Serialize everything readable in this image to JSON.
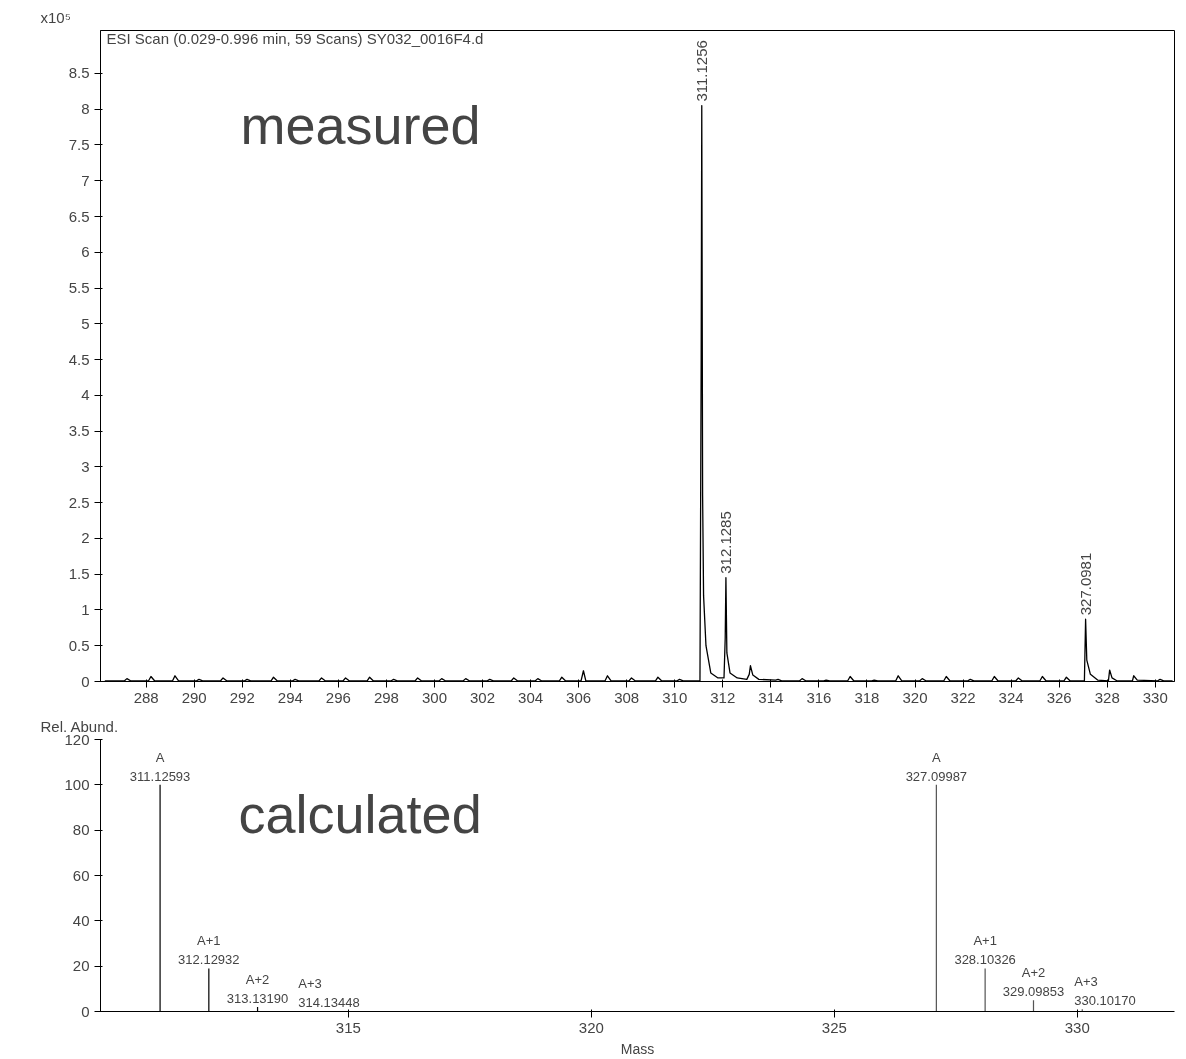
{
  "chart_data": [
    {
      "type": "line",
      "title": "ESI Scan (0.029-0.996 min, 59 Scans) SY032_0016F4.d",
      "ylabel": "x10⁵",
      "x": [
        286.3,
        287.1,
        287.2,
        287.35,
        288.1,
        288.2,
        288.35,
        289.1,
        289.2,
        289.35,
        290.1,
        290.2,
        290.35,
        291.1,
        291.2,
        291.35,
        292.1,
        292.2,
        292.35,
        293.2,
        293.3,
        293.45,
        294.1,
        294.2,
        294.35,
        295.2,
        295.3,
        295.45,
        296.2,
        296.3,
        296.45,
        297.2,
        297.3,
        297.45,
        298.2,
        298.3,
        298.45,
        299.2,
        299.3,
        299.45,
        300.2,
        300.3,
        300.45,
        301.2,
        301.3,
        301.45,
        302.2,
        302.3,
        302.45,
        303.2,
        303.3,
        303.45,
        304.2,
        304.3,
        304.45,
        305.2,
        305.3,
        305.45,
        306.1,
        306.2,
        306.3,
        307.1,
        307.2,
        307.35,
        308.1,
        308.2,
        308.35,
        309.2,
        309.3,
        309.45,
        310.1,
        310.2,
        310.35,
        311.05,
        311.1,
        311.125,
        311.16,
        311.2,
        311.3,
        311.5,
        311.8,
        312.05,
        312.1,
        312.13,
        312.17,
        312.3,
        312.6,
        313.0,
        313.1,
        313.15,
        313.25,
        313.5,
        314.2,
        314.3,
        314.45,
        315.2,
        315.3,
        315.45,
        316.2,
        316.3,
        316.45,
        317.2,
        317.3,
        317.45,
        318.2,
        318.3,
        318.45,
        319.2,
        319.3,
        319.45,
        320.2,
        320.3,
        320.45,
        321.2,
        321.3,
        321.45,
        322.2,
        322.3,
        322.45,
        323.2,
        323.3,
        323.45,
        324.2,
        324.3,
        324.45,
        325.2,
        325.3,
        325.45,
        326.2,
        326.3,
        326.45,
        327.05,
        327.1,
        327.15,
        327.3,
        327.6,
        328.05,
        328.1,
        328.2,
        328.4,
        329.05,
        329.1,
        329.25,
        330.1,
        330.2,
        330.35,
        330.7
      ],
      "values": [
        0.01,
        0.01,
        0.04,
        0.01,
        0.01,
        0.07,
        0.01,
        0.01,
        0.08,
        0.01,
        0.01,
        0.03,
        0.01,
        0.01,
        0.05,
        0.01,
        0.01,
        0.03,
        0.01,
        0.01,
        0.06,
        0.01,
        0.01,
        0.03,
        0.01,
        0.01,
        0.05,
        0.01,
        0.01,
        0.05,
        0.01,
        0.01,
        0.06,
        0.01,
        0.01,
        0.03,
        0.01,
        0.01,
        0.05,
        0.01,
        0.01,
        0.04,
        0.01,
        0.01,
        0.04,
        0.01,
        0.01,
        0.03,
        0.01,
        0.01,
        0.05,
        0.01,
        0.01,
        0.04,
        0.01,
        0.01,
        0.06,
        0.01,
        0.01,
        0.15,
        0.01,
        0.01,
        0.08,
        0.01,
        0.01,
        0.05,
        0.01,
        0.01,
        0.06,
        0.01,
        0.01,
        0.03,
        0.01,
        0.01,
        4.5,
        8.05,
        2.6,
        1.2,
        0.5,
        0.12,
        0.05,
        0.05,
        0.6,
        1.45,
        0.4,
        0.12,
        0.05,
        0.03,
        0.1,
        0.22,
        0.09,
        0.03,
        0.02,
        0.03,
        0.01,
        0.01,
        0.04,
        0.01,
        0.01,
        0.02,
        0.01,
        0.01,
        0.07,
        0.01,
        0.01,
        0.02,
        0.01,
        0.01,
        0.08,
        0.01,
        0.01,
        0.04,
        0.01,
        0.01,
        0.07,
        0.01,
        0.01,
        0.03,
        0.01,
        0.01,
        0.07,
        0.01,
        0.01,
        0.05,
        0.01,
        0.01,
        0.07,
        0.01,
        0.01,
        0.06,
        0.01,
        0.01,
        0.87,
        0.3,
        0.1,
        0.02,
        0.01,
        0.16,
        0.05,
        0.01,
        0.01,
        0.08,
        0.02,
        0.01,
        0.03,
        0.01,
        0.01
      ],
      "color": "#000000",
      "xlim": [
        286.1,
        330.8
      ],
      "xticks": [
        288,
        290,
        292,
        294,
        296,
        298,
        300,
        302,
        304,
        306,
        308,
        310,
        312,
        314,
        316,
        318,
        320,
        322,
        324,
        326,
        328,
        330
      ],
      "ylim": [
        0,
        9.1
      ],
      "yticks": [
        0,
        0.5,
        1,
        1.5,
        2,
        2.5,
        3,
        3.5,
        4,
        4.5,
        5,
        5.5,
        6,
        6.5,
        7,
        7.5,
        8,
        8.5
      ],
      "grid": false,
      "annotations": [
        "measured",
        {
          "text": "311.1256",
          "x": 311.1256,
          "y": 8.05
        },
        {
          "text": "312.1285",
          "x": 312.1285,
          "y": 1.45
        },
        {
          "text": "327.0981",
          "x": 327.0981,
          "y": 0.87
        }
      ]
    },
    {
      "type": "line",
      "ylabel": "Rel. Abund.",
      "xlabel": "Mass",
      "series": [
        {
          "type": "bar",
          "color": "#000000",
          "x": [
            311.12593,
            312.12932,
            313.1319,
            314.13448
          ],
          "values": [
            100,
            19,
            2,
            0.2
          ]
        },
        {
          "type": "bar",
          "color": "#555555",
          "x": [
            327.09987,
            328.10326,
            329.09853,
            330.1017
          ],
          "values": [
            100,
            19,
            5,
            1
          ]
        }
      ],
      "xlim": [
        309.9,
        332.0
      ],
      "xticks": [
        315,
        320,
        325,
        330
      ],
      "ylim": [
        0,
        120
      ],
      "yticks": [
        0,
        20,
        40,
        60,
        80,
        100,
        120
      ],
      "grid": false,
      "annotations": [
        "calculated",
        {
          "text": "A\n311.12593",
          "x": 311.12593,
          "y": 100
        },
        {
          "text": "A+1\n312.12932",
          "x": 312.12932,
          "y": 19
        },
        {
          "text": "A+2\n313.13190",
          "x": 313.1319,
          "y": 2
        },
        {
          "text": "A+3\n314.13448",
          "x": 314.13448,
          "y": 0.2
        },
        {
          "text": "A\n327.09987",
          "x": 327.09987,
          "y": 100
        },
        {
          "text": "A+1\n328.10326",
          "x": 328.10326,
          "y": 19
        },
        {
          "text": "A+2\n329.09853",
          "x": 329.09853,
          "y": 5
        },
        {
          "text": "A+3\n330.10170",
          "x": 330.1017,
          "y": 1
        }
      ]
    }
  ]
}
